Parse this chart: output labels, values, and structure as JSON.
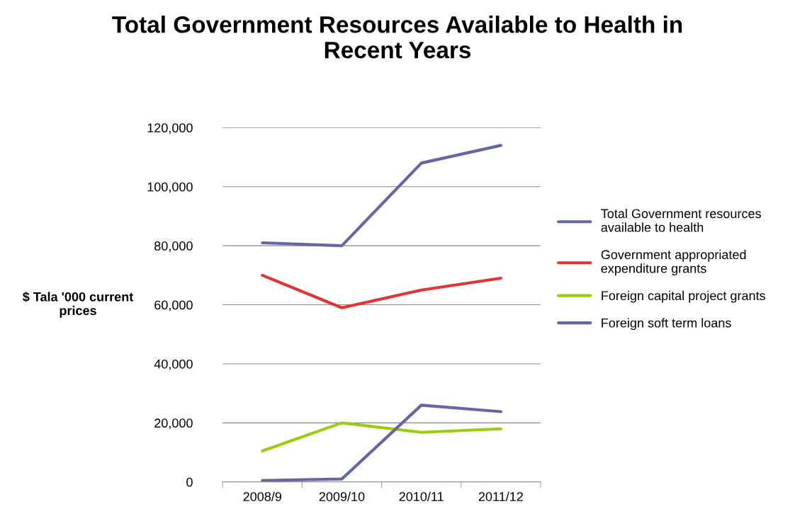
{
  "chart_data": {
    "type": "line",
    "title": "Total Government Resources Available to Health in\nRecent Years",
    "ylabel": "$ Tala '000 current\nprices",
    "categories": [
      "2008/9",
      "2009/10",
      "2010/11",
      "2011/12"
    ],
    "series": [
      {
        "name": "Total Government resources\navailable to health",
        "color": "#6666a3",
        "values": [
          81000,
          80000,
          108000,
          114000
        ]
      },
      {
        "name": "Government appropriated\nexpenditure grants",
        "color": "#e03535",
        "values": [
          70000,
          59000,
          65000,
          69000
        ]
      },
      {
        "name": "Foreign capital project grants",
        "color": "#99cc11",
        "values": [
          10500,
          20000,
          16800,
          18000
        ]
      },
      {
        "name": "Foreign soft term loans",
        "color": "#6666a3",
        "values": [
          500,
          1000,
          26000,
          23800
        ]
      }
    ],
    "ylim": [
      0,
      120000
    ],
    "yticks": [
      {
        "value": 0,
        "label": "0"
      },
      {
        "value": 20000,
        "label": "20,000"
      },
      {
        "value": 40000,
        "label": "40,000"
      },
      {
        "value": 60000,
        "label": "60,000"
      },
      {
        "value": 80000,
        "label": "80,000"
      },
      {
        "value": 100000,
        "label": "100,000"
      },
      {
        "value": 120000,
        "label": "120,000"
      }
    ],
    "grid": "y",
    "legend": "right",
    "marker": "none",
    "line_style": "solid"
  }
}
